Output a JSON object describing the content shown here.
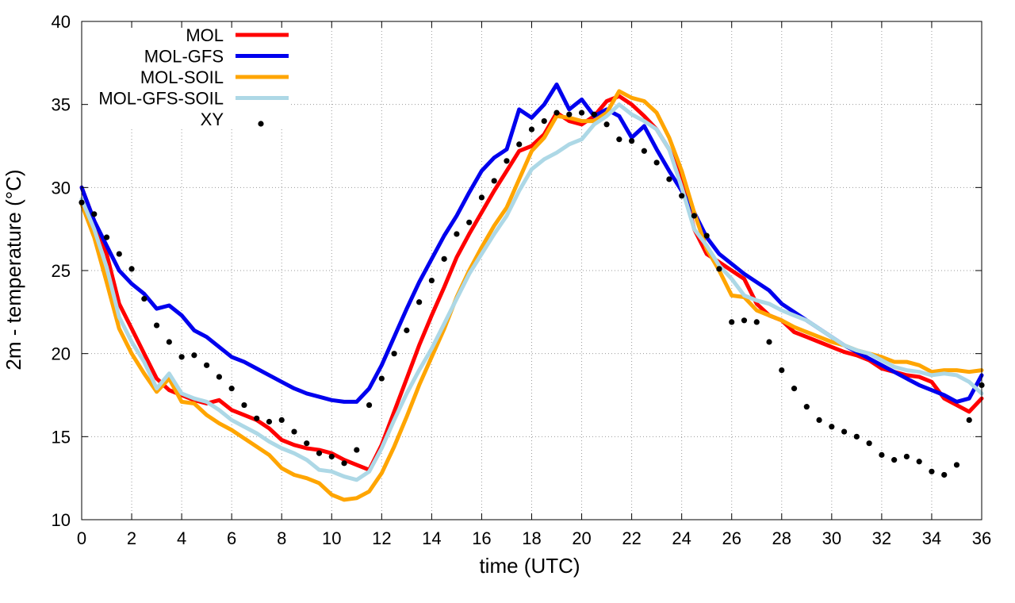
{
  "chart_data": {
    "type": "line",
    "title": "",
    "xlabel": "time (UTC)",
    "ylabel": "2m - temperature (°C)",
    "xlim": [
      0,
      36
    ],
    "ylim": [
      10,
      40
    ],
    "xticks": [
      0,
      2,
      4,
      6,
      8,
      10,
      12,
      14,
      16,
      18,
      20,
      22,
      24,
      26,
      28,
      30,
      32,
      34,
      36
    ],
    "yticks": [
      10,
      15,
      20,
      25,
      30,
      35,
      40
    ],
    "grid": true,
    "legend_position": "top-left",
    "series": [
      {
        "name": "MOL",
        "color": "#ff0000",
        "style": "line",
        "x": [
          0,
          0.5,
          1,
          1.5,
          2,
          2.5,
          3,
          3.5,
          4,
          4.5,
          5,
          5.5,
          6,
          6.5,
          7,
          7.5,
          8,
          8.5,
          9,
          9.5,
          10,
          10.5,
          11,
          11.5,
          12,
          12.5,
          13,
          13.5,
          14,
          14.5,
          15,
          15.5,
          16,
          16.5,
          17,
          17.5,
          18,
          18.5,
          19,
          19.5,
          20,
          20.5,
          21,
          21.5,
          22,
          22.5,
          23,
          23.5,
          24,
          24.5,
          25,
          25.5,
          26,
          26.5,
          27,
          27.5,
          28,
          28.5,
          29,
          29.5,
          30,
          30.5,
          31,
          31.5,
          32,
          32.5,
          33,
          33.5,
          34,
          34.5,
          35,
          35.5,
          36
        ],
        "y": [
          30.0,
          28.0,
          26.0,
          23.0,
          21.5,
          20.0,
          18.5,
          17.8,
          17.5,
          17.2,
          17.0,
          17.2,
          16.6,
          16.3,
          16.0,
          15.5,
          14.8,
          14.5,
          14.3,
          14.2,
          14.0,
          13.6,
          13.3,
          13.0,
          14.5,
          16.5,
          18.5,
          20.5,
          22.3,
          24.0,
          25.8,
          27.2,
          28.5,
          29.8,
          31.0,
          32.2,
          32.5,
          33.2,
          34.5,
          34.0,
          33.8,
          34.3,
          35.2,
          35.5,
          35.0,
          34.3,
          33.5,
          32.3,
          30.5,
          27.5,
          26.0,
          25.5,
          25.0,
          24.5,
          23.0,
          22.3,
          22.0,
          21.3,
          21.0,
          20.7,
          20.4,
          20.1,
          19.9,
          19.6,
          19.1,
          18.9,
          18.7,
          18.6,
          18.3,
          17.3,
          16.9,
          16.5,
          17.3
        ]
      },
      {
        "name": "MOL-GFS",
        "color": "#0000ee",
        "style": "line",
        "x": [
          0,
          0.5,
          1,
          1.5,
          2,
          2.5,
          3,
          3.5,
          4,
          4.5,
          5,
          5.5,
          6,
          6.5,
          7,
          7.5,
          8,
          8.5,
          9,
          9.5,
          10,
          10.5,
          11,
          11.5,
          12,
          12.5,
          13,
          13.5,
          14,
          14.5,
          15,
          15.5,
          16,
          16.5,
          17,
          17.5,
          18,
          18.5,
          19,
          19.5,
          20,
          20.5,
          21,
          21.5,
          22,
          22.5,
          23,
          23.5,
          24,
          24.5,
          25,
          25.5,
          26,
          26.5,
          27,
          27.5,
          28,
          28.5,
          29,
          29.5,
          30,
          30.5,
          31,
          31.5,
          32,
          32.5,
          33,
          33.5,
          34,
          34.5,
          35,
          35.5,
          36
        ],
        "y": [
          30.0,
          28.0,
          26.5,
          25.0,
          24.2,
          23.6,
          22.7,
          22.9,
          22.3,
          21.4,
          21.0,
          20.4,
          19.8,
          19.5,
          19.1,
          18.7,
          18.3,
          17.9,
          17.6,
          17.4,
          17.2,
          17.1,
          17.1,
          17.9,
          19.3,
          21.0,
          22.7,
          24.3,
          25.7,
          27.1,
          28.3,
          29.7,
          31.0,
          31.8,
          32.3,
          34.7,
          34.2,
          35.0,
          36.2,
          34.7,
          35.3,
          34.3,
          34.7,
          34.3,
          33.0,
          33.7,
          32.3,
          31.0,
          29.8,
          28.5,
          27.0,
          26.0,
          25.4,
          24.8,
          24.3,
          23.8,
          23.0,
          22.5,
          22.0,
          21.5,
          21.0,
          20.5,
          20.1,
          19.7,
          19.3,
          18.9,
          18.5,
          18.1,
          17.8,
          17.5,
          17.1,
          17.3,
          18.7
        ]
      },
      {
        "name": "MOL-SOIL",
        "color": "#ffa500",
        "style": "line",
        "x": [
          0,
          0.5,
          1,
          1.5,
          2,
          2.5,
          3,
          3.5,
          4,
          4.5,
          5,
          5.5,
          6,
          6.5,
          7,
          7.5,
          8,
          8.5,
          9,
          9.5,
          10,
          10.5,
          11,
          11.5,
          12,
          12.5,
          13,
          13.5,
          14,
          14.5,
          15,
          15.5,
          16,
          16.5,
          17,
          17.5,
          18,
          18.5,
          19,
          19.5,
          20,
          20.5,
          21,
          21.5,
          22,
          22.5,
          23,
          23.5,
          24,
          24.5,
          25,
          25.5,
          26,
          26.5,
          27,
          27.5,
          28,
          28.5,
          29,
          29.5,
          30,
          30.5,
          31,
          31.5,
          32,
          32.5,
          33,
          33.5,
          34,
          34.5,
          35,
          35.5,
          36
        ],
        "y": [
          29.0,
          27.0,
          24.3,
          21.5,
          20.0,
          18.8,
          17.7,
          18.5,
          17.1,
          17.0,
          16.3,
          15.8,
          15.4,
          14.9,
          14.4,
          13.9,
          13.1,
          12.7,
          12.5,
          12.2,
          11.5,
          11.2,
          11.3,
          11.7,
          12.8,
          14.4,
          16.2,
          18.1,
          19.8,
          21.5,
          23.4,
          25.0,
          26.4,
          27.7,
          28.8,
          30.5,
          32.2,
          33.0,
          34.3,
          34.2,
          34.0,
          34.0,
          34.5,
          35.8,
          35.4,
          35.2,
          34.5,
          33.0,
          31.0,
          28.5,
          26.3,
          25.0,
          23.5,
          23.4,
          22.6,
          22.3,
          22.0,
          21.6,
          21.3,
          21.0,
          20.7,
          20.5,
          20.2,
          20.0,
          19.8,
          19.5,
          19.5,
          19.3,
          18.9,
          19.0,
          19.0,
          18.9,
          19.0
        ]
      },
      {
        "name": "MOL-GFS-SOIL",
        "color": "#add8e6",
        "style": "line",
        "x": [
          0,
          0.5,
          1,
          1.5,
          2,
          2.5,
          3,
          3.5,
          4,
          4.5,
          5,
          5.5,
          6,
          6.5,
          7,
          7.5,
          8,
          8.5,
          9,
          9.5,
          10,
          10.5,
          11,
          11.5,
          12,
          12.5,
          13,
          13.5,
          14,
          14.5,
          15,
          15.5,
          16,
          16.5,
          17,
          17.5,
          18,
          18.5,
          19,
          19.5,
          20,
          20.5,
          21,
          21.5,
          22,
          22.5,
          23,
          23.5,
          24,
          24.5,
          25,
          25.5,
          26,
          26.5,
          27,
          27.5,
          28,
          28.5,
          29,
          29.5,
          30,
          30.5,
          31,
          31.5,
          32,
          32.5,
          33,
          33.5,
          34,
          34.5,
          35,
          35.5,
          36
        ],
        "y": [
          29.3,
          27.5,
          25.2,
          22.2,
          20.7,
          19.5,
          17.9,
          18.8,
          17.6,
          17.3,
          17.1,
          16.6,
          16.0,
          15.6,
          15.2,
          14.7,
          14.3,
          14.0,
          13.6,
          13.0,
          12.9,
          12.6,
          12.4,
          12.9,
          14.3,
          16.0,
          17.6,
          19.0,
          20.3,
          21.8,
          23.3,
          24.8,
          26.0,
          27.2,
          28.3,
          29.8,
          31.1,
          31.7,
          32.1,
          32.6,
          32.9,
          33.8,
          34.3,
          35.0,
          34.4,
          34.0,
          33.5,
          32.3,
          30.0,
          27.5,
          26.5,
          25.3,
          24.5,
          23.5,
          23.2,
          23.0,
          22.6,
          22.3,
          22.0,
          21.5,
          21.0,
          20.5,
          20.2,
          20.0,
          19.6,
          19.2,
          19.0,
          18.9,
          18.7,
          18.8,
          18.7,
          18.3,
          17.6
        ]
      },
      {
        "name": "XY",
        "color": "#000000",
        "style": "points",
        "x": [
          0,
          0.5,
          1,
          1.5,
          2,
          2.5,
          3,
          3.5,
          4,
          4.5,
          5,
          5.5,
          6,
          6.5,
          7,
          7.5,
          8,
          8.5,
          9,
          9.5,
          10,
          10.5,
          11,
          11.5,
          12,
          12.5,
          13,
          13.5,
          14,
          14.5,
          15,
          15.5,
          16,
          16.5,
          17,
          17.5,
          18,
          18.5,
          19,
          19.5,
          20,
          20.5,
          21,
          21.5,
          22,
          22.5,
          23,
          23.5,
          24,
          24.5,
          25,
          25.5,
          26,
          26.5,
          27,
          27.5,
          28,
          28.5,
          29,
          29.5,
          30,
          30.5,
          31,
          31.5,
          32,
          32.5,
          33,
          33.5,
          34,
          34.5,
          35,
          35.5,
          36
        ],
        "y": [
          29.1,
          28.4,
          27.0,
          26.0,
          25.1,
          23.3,
          21.7,
          20.7,
          19.8,
          19.9,
          19.3,
          18.6,
          17.9,
          16.9,
          16.1,
          15.9,
          16.0,
          15.3,
          14.6,
          14.0,
          13.8,
          13.4,
          14.2,
          16.9,
          18.5,
          20.0,
          21.4,
          23.1,
          24.4,
          25.7,
          27.2,
          27.9,
          29.4,
          30.4,
          31.6,
          32.6,
          33.5,
          34.0,
          34.5,
          34.4,
          34.5,
          34.4,
          33.8,
          32.9,
          32.8,
          32.2,
          31.5,
          30.5,
          29.5,
          28.3,
          27.1,
          25.1,
          21.9,
          22.0,
          21.9,
          20.7,
          19.0,
          17.9,
          16.8,
          16.0,
          15.6,
          15.3,
          15.0,
          14.6,
          13.9,
          13.6,
          13.8,
          13.5,
          12.9,
          12.7,
          13.3,
          16.0,
          18.1
        ]
      }
    ]
  }
}
